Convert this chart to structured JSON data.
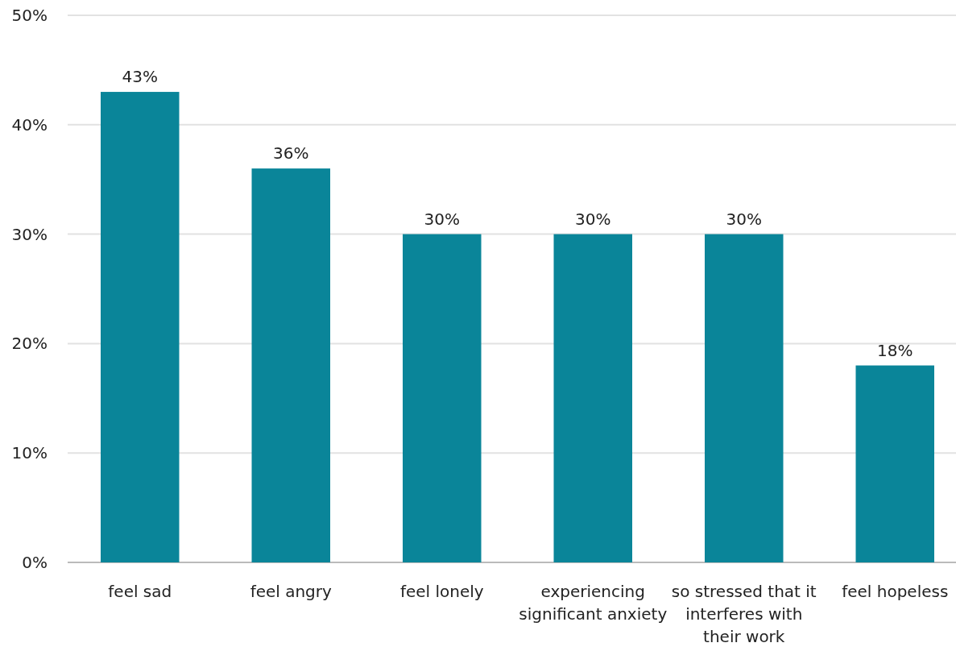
{
  "chart_data": {
    "type": "bar",
    "categories": [
      "feel sad",
      "feel angry",
      "feel lonely",
      "experiencing significant anxiety",
      "so stressed that it interferes with their work",
      "feel hopeless"
    ],
    "values": [
      43,
      36,
      30,
      30,
      30,
      18
    ],
    "value_labels": [
      "43%",
      "36%",
      "30%",
      "30%",
      "30%",
      "18%"
    ],
    "color": "#0a8599",
    "ylim": [
      0,
      50
    ],
    "yticks": [
      {
        "value": 0,
        "label": "0%"
      },
      {
        "value": 10,
        "label": "10%"
      },
      {
        "value": 20,
        "label": "20%"
      },
      {
        "value": 30,
        "label": "30%"
      },
      {
        "value": 40,
        "label": "40%"
      },
      {
        "value": 50,
        "label": "50%"
      }
    ],
    "grid": "y"
  }
}
